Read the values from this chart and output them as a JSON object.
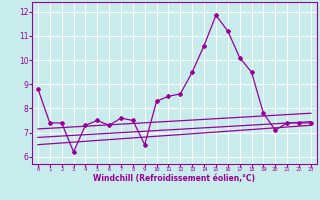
{
  "xlabel": "Windchill (Refroidissement éolien,°C)",
  "bg_color": "#c8ecec",
  "grid_color": "#ffffff",
  "line_color": "#990099",
  "xlim": [
    -0.5,
    23.5
  ],
  "ylim": [
    5.7,
    12.4
  ],
  "yticks": [
    6,
    7,
    8,
    9,
    10,
    11,
    12
  ],
  "xticks": [
    0,
    1,
    2,
    3,
    4,
    5,
    6,
    7,
    8,
    9,
    10,
    11,
    12,
    13,
    14,
    15,
    16,
    17,
    18,
    19,
    20,
    21,
    22,
    23
  ],
  "main_x": [
    0,
    1,
    2,
    3,
    4,
    5,
    6,
    7,
    8,
    9,
    10,
    11,
    12,
    13,
    14,
    15,
    16,
    17,
    18,
    19,
    20,
    21,
    22,
    23
  ],
  "main_y": [
    8.8,
    7.4,
    7.4,
    6.2,
    7.3,
    7.5,
    7.3,
    7.6,
    7.5,
    6.5,
    8.3,
    8.5,
    8.6,
    9.5,
    10.6,
    11.85,
    11.2,
    10.1,
    9.5,
    7.8,
    7.1,
    7.4,
    7.4,
    7.4
  ],
  "line2_x": [
    0,
    23
  ],
  "line2_y": [
    7.15,
    7.8
  ],
  "line3_x": [
    0,
    23
  ],
  "line3_y": [
    6.8,
    7.45
  ],
  "line4_x": [
    0,
    23
  ],
  "line4_y": [
    6.5,
    7.3
  ]
}
